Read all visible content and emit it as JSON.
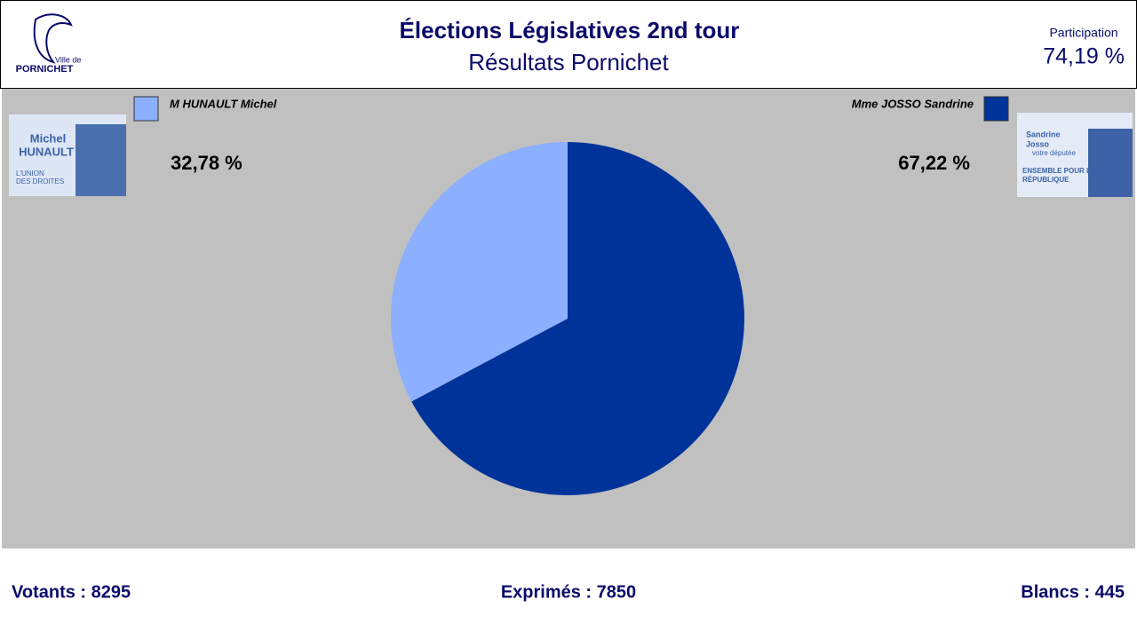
{
  "header": {
    "logo_line1": "Ville de",
    "logo_line2": "PORNICHET",
    "title": "Élections Législatives 2nd tour",
    "subtitle": "Résultats Pornichet",
    "participation_label": "Participation",
    "participation_value": "74,19 %"
  },
  "posters": [
    {
      "line1": "Michel",
      "line2": "HUNAULT",
      "line3": "L'UNION",
      "line4": "DES DROITES"
    },
    {
      "line1": "Sandrine",
      "line2": "Josso",
      "line3": "votre députée",
      "line4": "ENSEMBLE POUR LA",
      "line5": "RÉPUBLIQUE"
    }
  ],
  "chart_data": {
    "type": "pie",
    "categories": [
      "M HUNAULT Michel",
      "Mme JOSSO Sandrine"
    ],
    "values": [
      32.78,
      67.22
    ],
    "value_labels": [
      "32,78 %",
      "67,22 %"
    ],
    "colors": [
      "#8cb0ff",
      "#003399"
    ]
  },
  "footer": {
    "votants": "Votants : 8295",
    "exprimes": "Exprimés : 7850",
    "blancs": "Blancs : 445"
  }
}
